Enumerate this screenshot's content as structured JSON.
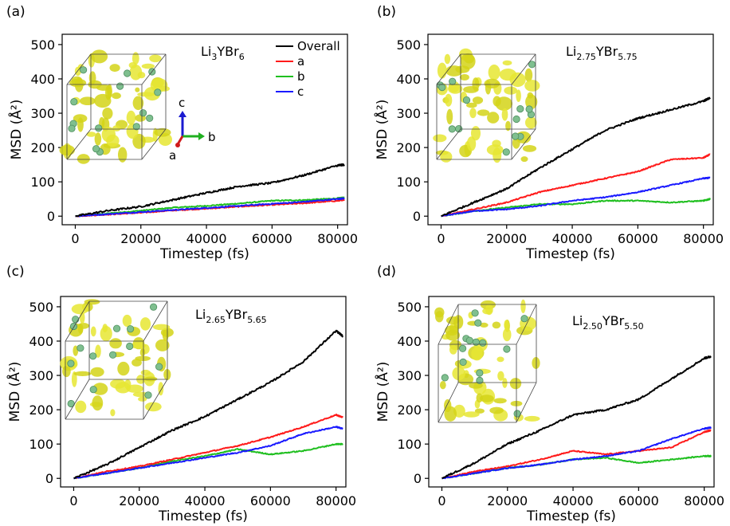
{
  "figure": {
    "x_label": "Timestep (fs)",
    "y_label": "MSD (Å²)",
    "legend": [
      "Overall",
      "a",
      "b",
      "c"
    ],
    "colors": {
      "Overall": "#000000",
      "a": "#ff1a1a",
      "b": "#1fbf1f",
      "c": "#1a1aff",
      "isosurface": "#e8e83a",
      "atom": "#7fbf8f"
    },
    "axes_label": {
      "a": "a",
      "b": "b",
      "c": "c"
    }
  },
  "chart_data": [
    {
      "type": "line",
      "panel": "(a)",
      "formula": {
        "base": "Li",
        "sub1": "3",
        "mid": "YBr",
        "sub2": "6"
      },
      "xlim": [
        -4000,
        83000
      ],
      "ylim": [
        -25,
        530
      ],
      "xticks": [
        0,
        20000,
        40000,
        60000,
        80000
      ],
      "yticks": [
        0,
        100,
        200,
        300,
        400,
        500
      ],
      "xlabel": "Timestep (fs)",
      "ylabel": "MSD (Å²)",
      "legend": "top-right",
      "x": [
        0,
        10000,
        20000,
        30000,
        40000,
        50000,
        60000,
        70000,
        80000,
        82000
      ],
      "series": [
        {
          "name": "Overall",
          "values": [
            0,
            16,
            28,
            48,
            68,
            87,
            97,
            120,
            148,
            150
          ]
        },
        {
          "name": "a",
          "values": [
            0,
            5,
            10,
            17,
            22,
            28,
            33,
            38,
            45,
            48
          ]
        },
        {
          "name": "b",
          "values": [
            0,
            8,
            16,
            25,
            30,
            37,
            45,
            47,
            52,
            54
          ]
        },
        {
          "name": "c",
          "values": [
            0,
            6,
            12,
            18,
            24,
            30,
            36,
            42,
            50,
            52
          ]
        }
      ]
    },
    {
      "type": "line",
      "panel": "(b)",
      "formula": {
        "base": "Li",
        "sub1": "2.75",
        "mid": "YBr",
        "sub2": "5.75"
      },
      "xlim": [
        -4000,
        83000
      ],
      "ylim": [
        -25,
        530
      ],
      "xticks": [
        0,
        20000,
        40000,
        60000,
        80000
      ],
      "yticks": [
        0,
        100,
        200,
        300,
        400,
        500
      ],
      "xlabel": "Timestep (fs)",
      "ylabel": "MSD (Å²)",
      "x": [
        0,
        10000,
        20000,
        30000,
        40000,
        50000,
        60000,
        70000,
        80000,
        82000
      ],
      "series": [
        {
          "name": "Overall",
          "values": [
            0,
            40,
            80,
            140,
            195,
            250,
            285,
            310,
            335,
            345
          ]
        },
        {
          "name": "a",
          "values": [
            0,
            20,
            40,
            70,
            90,
            110,
            130,
            165,
            170,
            180
          ]
        },
        {
          "name": "b",
          "values": [
            0,
            15,
            25,
            35,
            35,
            45,
            45,
            40,
            45,
            50
          ]
        },
        {
          "name": "c",
          "values": [
            0,
            15,
            20,
            30,
            45,
            55,
            70,
            90,
            110,
            112
          ]
        }
      ]
    },
    {
      "type": "line",
      "panel": "(c)",
      "formula": {
        "base": "Li",
        "sub1": "2.65",
        "mid": "YBr",
        "sub2": "5.65"
      },
      "xlim": [
        -4000,
        83000
      ],
      "ylim": [
        -25,
        530
      ],
      "xticks": [
        0,
        20000,
        40000,
        60000,
        80000
      ],
      "yticks": [
        0,
        100,
        200,
        300,
        400,
        500
      ],
      "xlabel": "Timestep (fs)",
      "ylabel": "MSD (Å²)",
      "x": [
        0,
        10000,
        20000,
        30000,
        40000,
        50000,
        60000,
        70000,
        80000,
        82000
      ],
      "series": [
        {
          "name": "Overall",
          "values": [
            0,
            40,
            90,
            140,
            180,
            230,
            280,
            340,
            430,
            415
          ]
        },
        {
          "name": "a",
          "values": [
            0,
            20,
            35,
            55,
            75,
            95,
            120,
            150,
            185,
            178
          ]
        },
        {
          "name": "b",
          "values": [
            0,
            15,
            30,
            50,
            65,
            85,
            70,
            80,
            100,
            100
          ]
        },
        {
          "name": "c",
          "values": [
            0,
            15,
            30,
            45,
            60,
            75,
            95,
            130,
            150,
            145
          ]
        }
      ]
    },
    {
      "type": "line",
      "panel": "(d)",
      "formula": {
        "base": "Li",
        "sub1": "2.50",
        "mid": "YBr",
        "sub2": "5.50"
      },
      "xlim": [
        -4000,
        83000
      ],
      "ylim": [
        -25,
        530
      ],
      "xticks": [
        0,
        20000,
        40000,
        60000,
        80000
      ],
      "yticks": [
        0,
        100,
        200,
        300,
        400,
        500
      ],
      "xlabel": "Timestep (fs)",
      "ylabel": "MSD (Å²)",
      "x": [
        0,
        10000,
        20000,
        30000,
        40000,
        50000,
        60000,
        70000,
        80000,
        82000
      ],
      "series": [
        {
          "name": "Overall",
          "values": [
            0,
            45,
            100,
            140,
            185,
            200,
            230,
            290,
            350,
            355
          ]
        },
        {
          "name": "a",
          "values": [
            0,
            20,
            35,
            55,
            80,
            70,
            80,
            90,
            135,
            140
          ]
        },
        {
          "name": "b",
          "values": [
            0,
            15,
            30,
            40,
            55,
            60,
            45,
            55,
            65,
            65
          ]
        },
        {
          "name": "c",
          "values": [
            0,
            15,
            30,
            40,
            55,
            65,
            80,
            115,
            145,
            148
          ]
        }
      ]
    }
  ]
}
